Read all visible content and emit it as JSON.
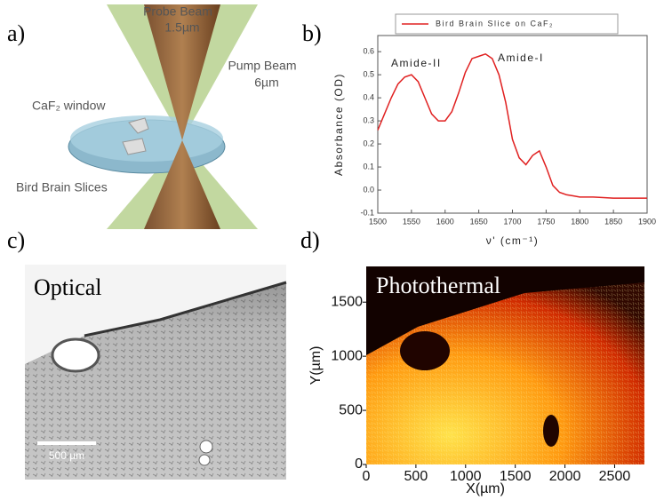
{
  "chart_data": {
    "type": "line",
    "x": [
      1500,
      1510,
      1520,
      1530,
      1540,
      1550,
      1560,
      1570,
      1580,
      1590,
      1600,
      1610,
      1620,
      1630,
      1640,
      1650,
      1660,
      1670,
      1680,
      1690,
      1700,
      1710,
      1720,
      1730,
      1740,
      1750,
      1760,
      1770,
      1780,
      1790,
      1800,
      1820,
      1850,
      1900
    ],
    "series": [
      {
        "name": "Bird Brain Slice on CaF₂",
        "color": "#e02020",
        "values": [
          0.26,
          0.33,
          0.4,
          0.46,
          0.49,
          0.5,
          0.47,
          0.4,
          0.33,
          0.3,
          0.3,
          0.34,
          0.42,
          0.51,
          0.57,
          0.58,
          0.59,
          0.57,
          0.5,
          0.38,
          0.22,
          0.14,
          0.11,
          0.15,
          0.17,
          0.1,
          0.02,
          -0.01,
          -0.02,
          -0.025,
          -0.03,
          -0.03,
          -0.035,
          -0.035
        ]
      }
    ],
    "xlim": [
      1500,
      1900
    ],
    "xticks": [
      1500,
      1550,
      1600,
      1650,
      1700,
      1750,
      1800,
      1850,
      1900
    ],
    "ylim": [
      -0.1,
      0.67
    ],
    "yticks": [
      -0.1,
      {
        "value": 0,
        "label": "0.0"
      },
      0.1,
      0.2,
      0.3,
      0.4,
      0.5,
      0.6
    ],
    "x_label": "ν' (cm⁻¹)",
    "y_label": "Absorbance (OD)",
    "annotations": [
      "Amide-II",
      "Amide-I"
    ]
  },
  "panels": {
    "a": {
      "letter": "a)",
      "probe": "Probe Beam",
      "probe_size": "1.5µm",
      "pump": "Pump Beam",
      "pump_size": "6µm",
      "window": "CaF₂ window",
      "slices": "Bird Brain Slices"
    },
    "b": {
      "letter": "b)"
    },
    "c": {
      "letter": "c)",
      "title": "Optical",
      "scale_bar": "500 µm"
    },
    "d": {
      "letter": "d)",
      "title": "Photothermal",
      "x_label": "X(µm)",
      "y_label": "Y(µm)",
      "xlim": [
        0,
        2800
      ],
      "xticks": [
        0,
        500,
        1000,
        1500,
        2000,
        2500
      ],
      "ylim": [
        0,
        1830
      ],
      "yticks": [
        0,
        500,
        1000,
        1500
      ]
    }
  }
}
